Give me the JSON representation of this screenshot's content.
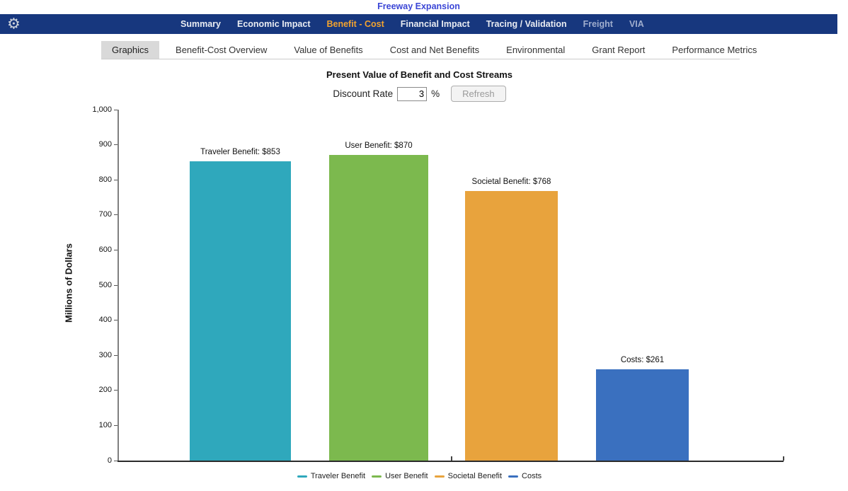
{
  "page": {
    "title": "Freeway Expansion"
  },
  "colors": {
    "navbar_bg": "#17377e",
    "nav_active_text": "#f2a32f",
    "title_link": "#3b46d6",
    "tab_selected_bg": "#d9d9d9"
  },
  "navbar": {
    "gear_icon": "gear-icon",
    "items": [
      {
        "label": "Summary",
        "state": "normal"
      },
      {
        "label": "Economic Impact",
        "state": "normal"
      },
      {
        "label": "Benefit - Cost",
        "state": "active"
      },
      {
        "label": "Financial Impact",
        "state": "normal"
      },
      {
        "label": "Tracing / Validation",
        "state": "normal"
      },
      {
        "label": "Freight",
        "state": "muted"
      },
      {
        "label": "VIA",
        "state": "muted"
      }
    ]
  },
  "tabs": {
    "items": [
      {
        "label": "Graphics",
        "selected": true
      },
      {
        "label": "Benefit-Cost Overview",
        "selected": false
      },
      {
        "label": "Value of Benefits",
        "selected": false
      },
      {
        "label": "Cost and Net Benefits",
        "selected": false
      },
      {
        "label": "Environmental",
        "selected": false
      },
      {
        "label": "Grant Report",
        "selected": false
      },
      {
        "label": "Performance Metrics",
        "selected": false
      }
    ]
  },
  "controls": {
    "discount_rate_label": "Discount Rate",
    "discount_rate_value": "3",
    "percent_sign": "%",
    "refresh_label": "Refresh"
  },
  "chart_data": {
    "type": "bar",
    "title": "Present Value of Benefit and Cost Streams",
    "xlabel": "",
    "ylabel": "Millions of Dollars",
    "ylim": [
      0,
      1000
    ],
    "ytick_interval": 100,
    "ytick_labels": [
      "0",
      "100",
      "200",
      "300",
      "400",
      "500",
      "600",
      "700",
      "800",
      "900",
      "1,000"
    ],
    "categories": [
      "Traveler Benefit",
      "User Benefit",
      "Societal Benefit",
      "Costs"
    ],
    "values": [
      853,
      870,
      768,
      261
    ],
    "bar_labels": [
      "Traveler Benefit: $853",
      "User Benefit: $870",
      "Societal Benefit: $768",
      "Costs: $261"
    ],
    "colors": [
      "#2fa8bc",
      "#7cb94e",
      "#e8a33d",
      "#3a70bf"
    ],
    "grid": false,
    "legend": {
      "position": "bottom",
      "entries": [
        "Traveler Benefit",
        "User Benefit",
        "Societal Benefit",
        "Costs"
      ]
    }
  }
}
